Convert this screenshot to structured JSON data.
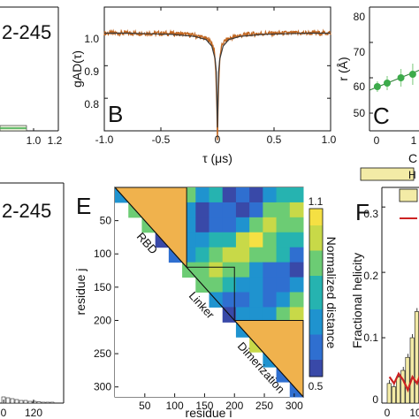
{
  "chart_data": [
    {
      "panel": "A",
      "type": "bar",
      "partial_label": "2-245",
      "x_ticks": [
        "1.0",
        "1.2"
      ],
      "xlim": [
        0.6,
        1.2
      ]
    },
    {
      "panel": "B",
      "type": "line",
      "panel_letter": "B",
      "xlabel": "τ (μs)",
      "ylabel": "gAD(τ)",
      "xlim": [
        -1.0,
        1.0
      ],
      "ylim": [
        0.7,
        1.08
      ],
      "x_ticks": [
        "-1.0",
        "-0.5",
        "0",
        "0.5",
        "1.0"
      ],
      "y_ticks": [
        "1.0",
        "0.9",
        "0.8"
      ],
      "series": [
        {
          "role": "data",
          "color": "#c0651f",
          "x": [
            -1.0,
            -0.8,
            -0.6,
            -0.4,
            -0.2,
            -0.1,
            -0.05,
            -0.02,
            -0.01,
            0,
            0.01,
            0.02,
            0.05,
            0.1,
            0.2,
            0.4,
            0.6,
            0.8,
            1.0
          ],
          "y": [
            1.0,
            1.0,
            0.998,
            0.996,
            0.99,
            0.98,
            0.96,
            0.92,
            0.88,
            0.71,
            0.88,
            0.92,
            0.96,
            0.98,
            0.99,
            0.996,
            0.998,
            1.0,
            1.0
          ]
        },
        {
          "role": "fit",
          "color": "#3a3a3a",
          "x": [
            -1.0,
            -0.8,
            -0.6,
            -0.4,
            -0.2,
            -0.1,
            -0.05,
            -0.02,
            -0.01,
            0,
            0.01,
            0.02,
            0.05,
            0.1,
            0.2,
            0.4,
            0.6,
            0.8,
            1.0
          ],
          "y": [
            1.0,
            1.0,
            0.998,
            0.996,
            0.99,
            0.98,
            0.96,
            0.92,
            0.88,
            0.71,
            0.88,
            0.92,
            0.96,
            0.98,
            0.99,
            0.996,
            0.998,
            1.0,
            1.0
          ]
        }
      ]
    },
    {
      "panel": "C",
      "type": "scatter",
      "panel_letter": "C",
      "ylabel": "r (Å)",
      "xlabel_partial": "C",
      "ylim": [
        45,
        80
      ],
      "y_ticks": [
        "80",
        "70",
        "60",
        "50"
      ],
      "x_ticks": [
        "0",
        "1"
      ],
      "xlim": [
        -0.2,
        1.6
      ],
      "series": [
        {
          "color": "#3cab4a",
          "x": [
            0.0,
            0.25,
            0.6,
            0.9,
            1.15,
            1.35
          ],
          "y": [
            57.5,
            58.5,
            60,
            61,
            62,
            63
          ],
          "err": [
            1.5,
            2,
            2.5,
            3,
            3,
            3.5
          ]
        }
      ],
      "fit_line": {
        "x": [
          -0.2,
          1.6
        ],
        "y": [
          56.5,
          64.5
        ]
      }
    },
    {
      "panel": "D",
      "type": "bar",
      "partial_label": "2-245",
      "x_ticks": [
        "0",
        "120"
      ],
      "xlim": [
        -30,
        150
      ]
    },
    {
      "panel": "E",
      "type": "heatmap",
      "panel_letter": "E",
      "xlabel": "residue i",
      "ylabel": "residue j",
      "x_ticks": [
        "50",
        "100",
        "150",
        "200",
        "250",
        "300"
      ],
      "y_ticks": [
        "50",
        "100",
        "150",
        "200",
        "250",
        "300"
      ],
      "xlim": [
        0,
        315
      ],
      "ylim": [
        0,
        315
      ],
      "colorbar": {
        "label": "Normalized distance",
        "range": [
          0.5,
          1.1
        ],
        "ticks": [
          "1.1",
          "0.5"
        ]
      },
      "domains": [
        {
          "label": "RBD",
          "start": 0,
          "end": 120
        },
        {
          "label": "Linker",
          "start": 120,
          "end": 200
        },
        {
          "label": "Dimerization",
          "start": 200,
          "end": 315
        }
      ]
    },
    {
      "panel": "F",
      "type": "bar",
      "panel_letter": "F",
      "ylabel": "Fractional helicity",
      "ylim": [
        0,
        0.33
      ],
      "y_ticks": [
        "0.3",
        "0.2",
        "0.1",
        "0"
      ],
      "x_ticks": [
        "0",
        "10"
      ],
      "xlim": [
        0,
        18
      ],
      "legend_partial": "H",
      "series": [
        {
          "name": "bars",
          "color": "#f3eba6",
          "x": [
            1,
            2,
            3,
            4,
            5,
            6,
            7,
            8,
            9,
            10,
            11,
            12,
            13,
            14,
            15,
            16,
            17,
            18
          ],
          "values": [
            0.03,
            0.025,
            0.04,
            0.05,
            0.07,
            0.1,
            0.14,
            0.19,
            0.22,
            0.24,
            0.24,
            0.23,
            0.21,
            0.18,
            0.14,
            0.09,
            0.06,
            0.04
          ]
        },
        {
          "name": "line",
          "color": "#cc2222",
          "x": [
            1,
            2,
            3,
            4,
            5,
            6,
            7,
            8,
            9,
            10
          ],
          "values": [
            0.04,
            0.03,
            0.045,
            0.035,
            0.02,
            0.04,
            0.03,
            0.05,
            0.03,
            0.04
          ]
        }
      ]
    }
  ]
}
